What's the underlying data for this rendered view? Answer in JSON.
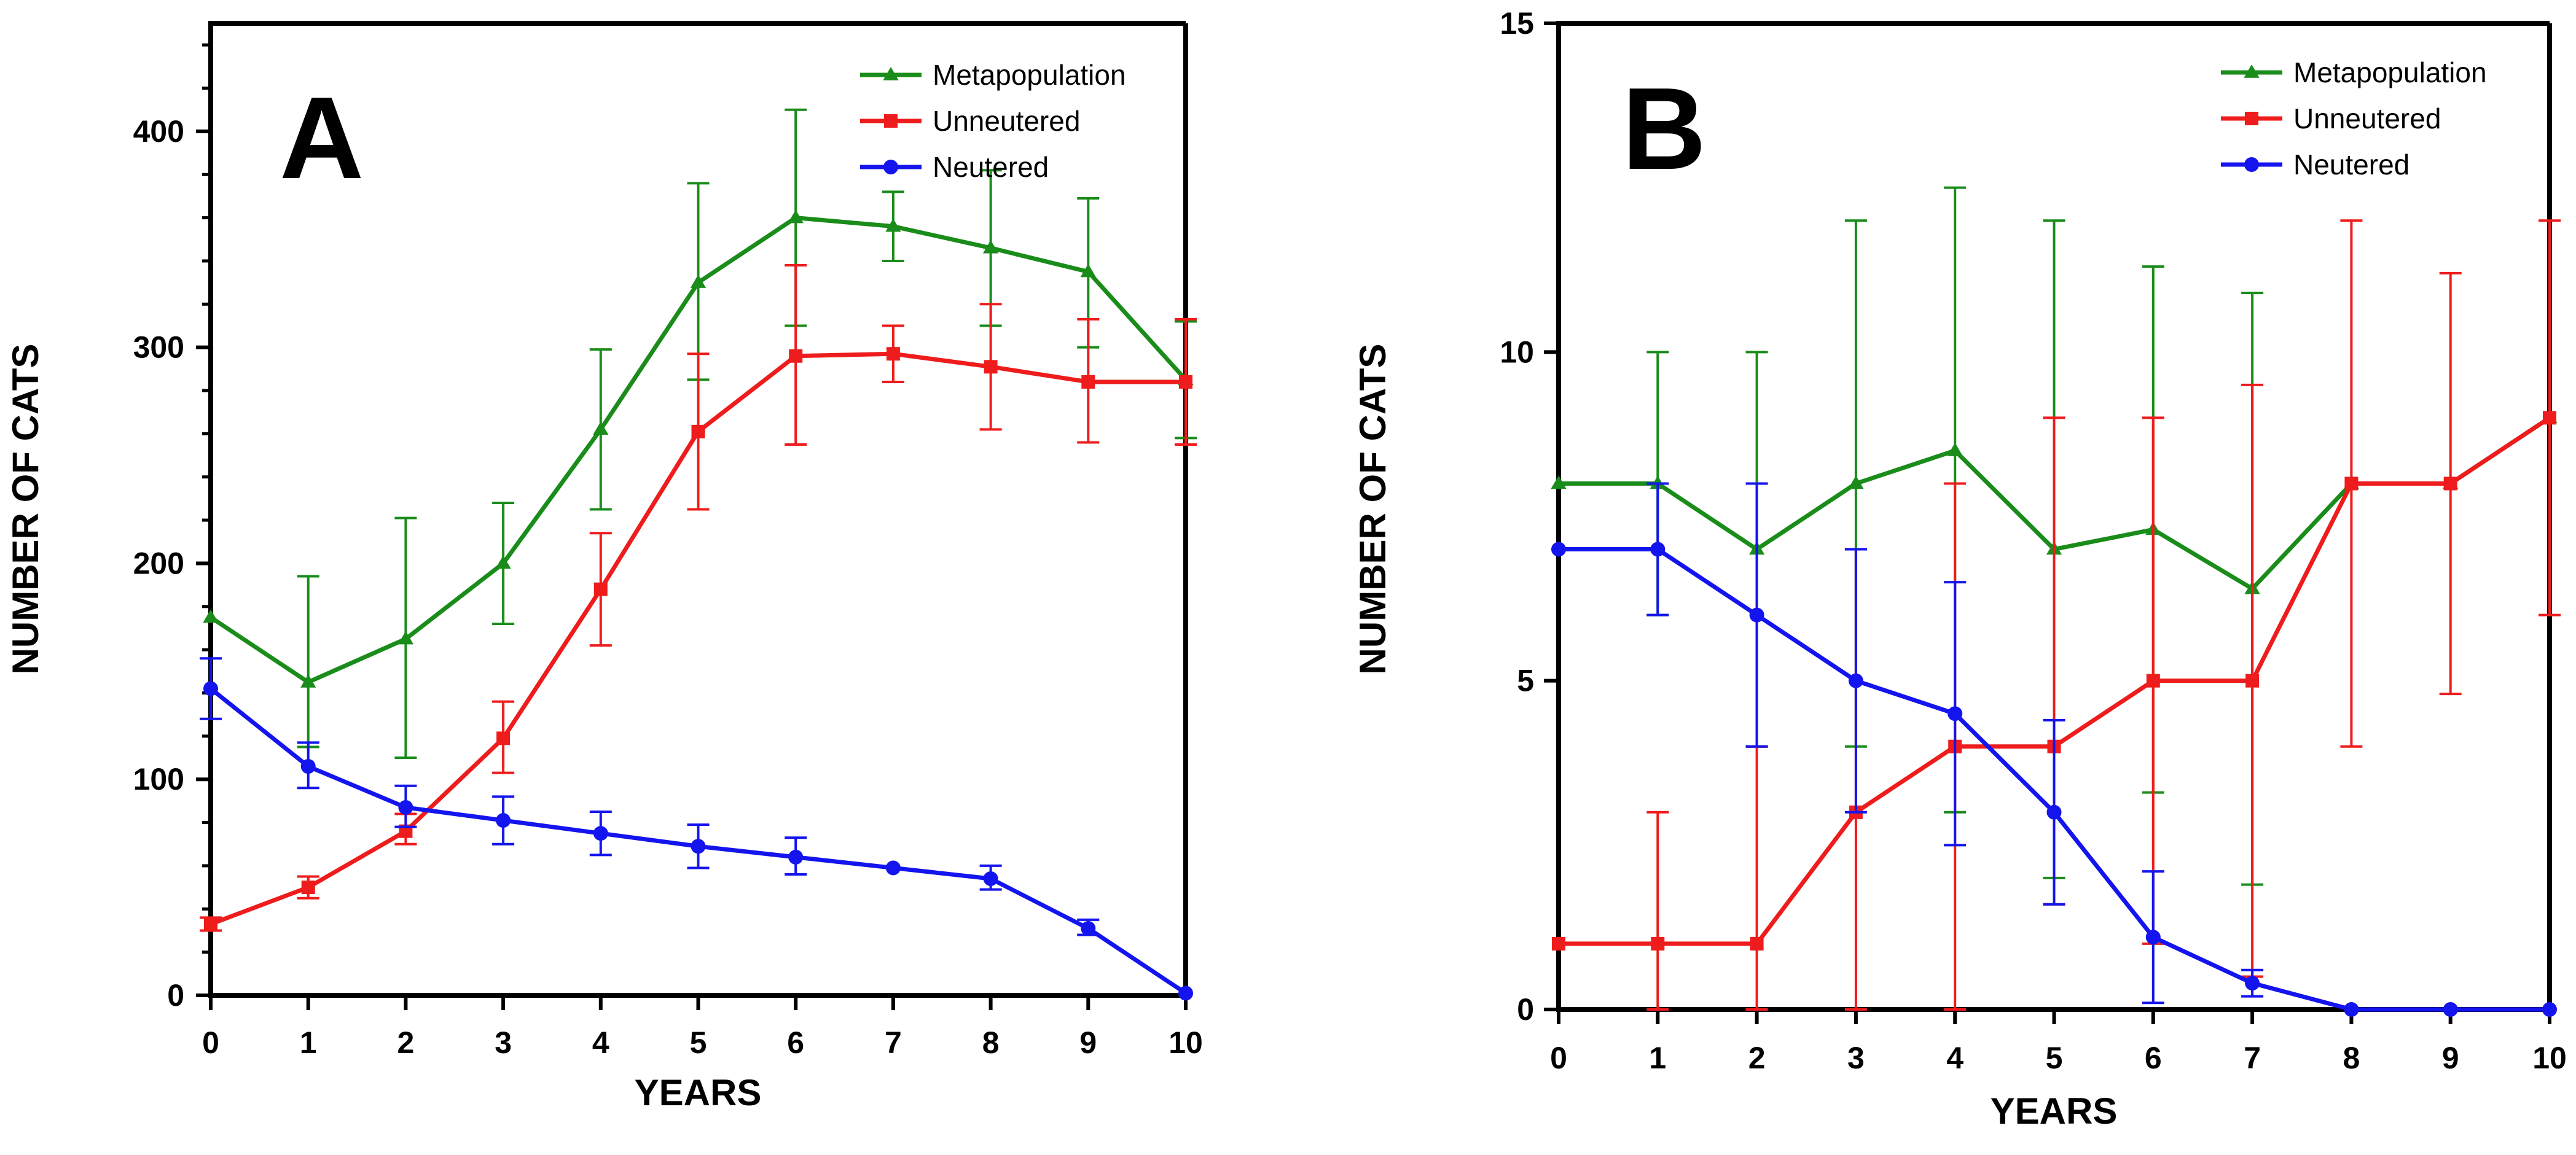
{
  "chart_data": [
    {
      "type": "line",
      "panel_label": "A",
      "x": [
        0,
        1,
        2,
        3,
        4,
        5,
        6,
        7,
        8,
        9,
        10
      ],
      "xlabel": "YEARS",
      "ylabel": "NUMBER OF CATS",
      "xlim": [
        0,
        10
      ],
      "ylim": [
        0,
        450
      ],
      "xticks": [
        "0",
        "1",
        "2",
        "3",
        "4",
        "5",
        "6",
        "7",
        "8",
        "9",
        "10"
      ],
      "yticks": [
        {
          "value": 0,
          "label": "0"
        },
        {
          "value": 100,
          "label": "100"
        },
        {
          "value": 200,
          "label": "200"
        },
        {
          "value": 300,
          "label": "300"
        },
        {
          "value": 400,
          "label": "400"
        }
      ],
      "y_minor_step": 20,
      "legend_position": "top-right",
      "series": [
        {
          "name": "Metapopulation",
          "color": "#1a8c1a",
          "marker": "triangle",
          "values": [
            175,
            145,
            165,
            200,
            262,
            330,
            360,
            356,
            346,
            335,
            285
          ],
          "error": [
            [
              175,
              175
            ],
            [
              115,
              194
            ],
            [
              110,
              221
            ],
            [
              172,
              228
            ],
            [
              225,
              299
            ],
            [
              285,
              376
            ],
            [
              310,
              410
            ],
            [
              340,
              372
            ],
            [
              310,
              382
            ],
            [
              300,
              369
            ],
            [
              258,
              312
            ]
          ]
        },
        {
          "name": "Unneutered",
          "color": "#ee1c1c",
          "marker": "square",
          "values": [
            33,
            50,
            76,
            119,
            188,
            261,
            296,
            297,
            291,
            284,
            284
          ],
          "error": [
            [
              30,
              36
            ],
            [
              45,
              55
            ],
            [
              70,
              84
            ],
            [
              103,
              136
            ],
            [
              162,
              214
            ],
            [
              225,
              297
            ],
            [
              255,
              338
            ],
            [
              284,
              310
            ],
            [
              262,
              320
            ],
            [
              256,
              313
            ],
            [
              255,
              313
            ]
          ]
        },
        {
          "name": "Neutered",
          "color": "#1414ee",
          "marker": "circle",
          "values": [
            142,
            106,
            87,
            81,
            75,
            69,
            64,
            59,
            54,
            31,
            1
          ],
          "error": [
            [
              128,
              156
            ],
            [
              96,
              117
            ],
            [
              78,
              97
            ],
            [
              70,
              92
            ],
            [
              65,
              85
            ],
            [
              59,
              79
            ],
            [
              56,
              73
            ],
            [
              59,
              59
            ],
            [
              49,
              60
            ],
            [
              28,
              35
            ],
            [
              1,
              1
            ]
          ]
        }
      ]
    },
    {
      "type": "line",
      "panel_label": "B",
      "x": [
        0,
        1,
        2,
        3,
        4,
        5,
        6,
        7,
        8,
        9,
        10
      ],
      "xlabel": "YEARS",
      "ylabel": "NUMBER OF CATS",
      "xlim": [
        0,
        10
      ],
      "ylim": [
        0,
        15
      ],
      "xticks": [
        "0",
        "1",
        "2",
        "3",
        "4",
        "5",
        "6",
        "7",
        "8",
        "9",
        "10"
      ],
      "yticks": [
        {
          "value": 0,
          "label": "0"
        },
        {
          "value": 5,
          "label": "5"
        },
        {
          "value": 10,
          "label": "10"
        },
        {
          "value": 15,
          "label": "15"
        }
      ],
      "y_minor_step": 0,
      "legend_position": "top-right",
      "series": [
        {
          "name": "Metapopulation",
          "color": "#1a8c1a",
          "marker": "triangle",
          "values": [
            8,
            8,
            7,
            8,
            8.5,
            7,
            7.3,
            6.4,
            8,
            8,
            9
          ],
          "error": [
            [
              8,
              8
            ],
            [
              6,
              10
            ],
            [
              4,
              10
            ],
            [
              4,
              12
            ],
            [
              3,
              12.5
            ],
            [
              2,
              12
            ],
            [
              3.3,
              11.3
            ],
            [
              1.9,
              10.9
            ],
            [
              8,
              8
            ],
            [
              8,
              8
            ],
            [
              9,
              9
            ]
          ]
        },
        {
          "name": "Unneutered",
          "color": "#ee1c1c",
          "marker": "square",
          "values": [
            1,
            1,
            1,
            3,
            4,
            4,
            5,
            5,
            8,
            8,
            9
          ],
          "error": [
            [
              1,
              1
            ],
            [
              0,
              3
            ],
            [
              0,
              4
            ],
            [
              0,
              7
            ],
            [
              0,
              8
            ],
            [
              1.6,
              9
            ],
            [
              1,
              9
            ],
            [
              0.5,
              9.5
            ],
            [
              4,
              12
            ],
            [
              4.8,
              11.2
            ],
            [
              6,
              12
            ]
          ]
        },
        {
          "name": "Neutered",
          "color": "#1414ee",
          "marker": "circle",
          "values": [
            7,
            7,
            6,
            5,
            4.5,
            3,
            1.1,
            0.4,
            0,
            0,
            0
          ],
          "error": [
            [
              7,
              7
            ],
            [
              6,
              8
            ],
            [
              4,
              8
            ],
            [
              3,
              7
            ],
            [
              2.5,
              6.5
            ],
            [
              1.6,
              4.4
            ],
            [
              0.1,
              2.1
            ],
            [
              0.2,
              0.6
            ],
            [
              0,
              0
            ],
            [
              0,
              0
            ],
            [
              0,
              0
            ]
          ]
        }
      ]
    }
  ]
}
